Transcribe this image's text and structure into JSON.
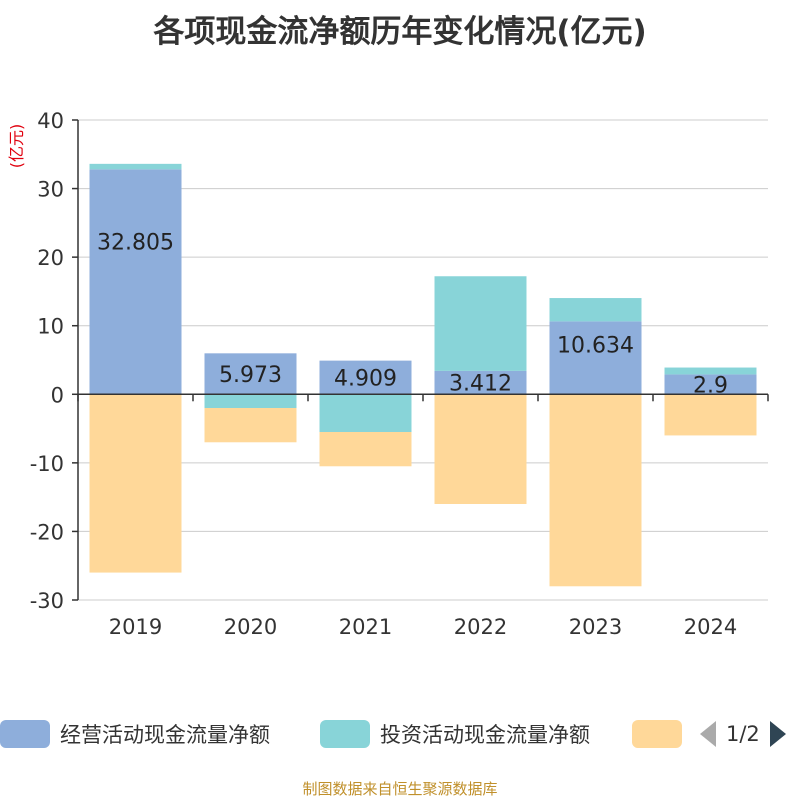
{
  "title": "各项现金流净额历年变化情况(亿元)",
  "source": "制图数据来自恒生聚源数据库",
  "chart_data": {
    "type": "bar",
    "stacked": true,
    "title": "各项现金流净额历年变化情况(亿元)",
    "ylabel": "(亿元)",
    "xlabel": "",
    "ylim": [
      -30,
      40
    ],
    "yticks": [
      40,
      30,
      20,
      10,
      0,
      -10,
      -20,
      -30
    ],
    "categories": [
      "2019",
      "2020",
      "2021",
      "2022",
      "2023",
      "2024"
    ],
    "grid": true,
    "series": [
      {
        "name": "经营活动现金流量净额",
        "color": "#8eaedb",
        "values": [
          32.805,
          5.973,
          4.909,
          3.412,
          10.634,
          2.9
        ],
        "labels": [
          "32.805",
          "5.973",
          "4.909",
          "3.412",
          "10.634",
          "2.9"
        ]
      },
      {
        "name": "投资活动现金流量净额",
        "color": "#88d4d8",
        "values": [
          0.8,
          -2.0,
          -5.5,
          13.8,
          3.4,
          1.0
        ]
      },
      {
        "name": "",
        "color": "#ffd899",
        "values": [
          -26.0,
          -5.0,
          -5.0,
          -16.0,
          -28.0,
          -6.0
        ]
      }
    ]
  },
  "legend": {
    "items": [
      {
        "label": "经营活动现金流量净额",
        "color": "#8eaedb"
      },
      {
        "label": "投资活动现金流量净额",
        "color": "#88d4d8"
      },
      {
        "label": "",
        "color": "#ffd899"
      }
    ],
    "page_text": "1/2"
  }
}
